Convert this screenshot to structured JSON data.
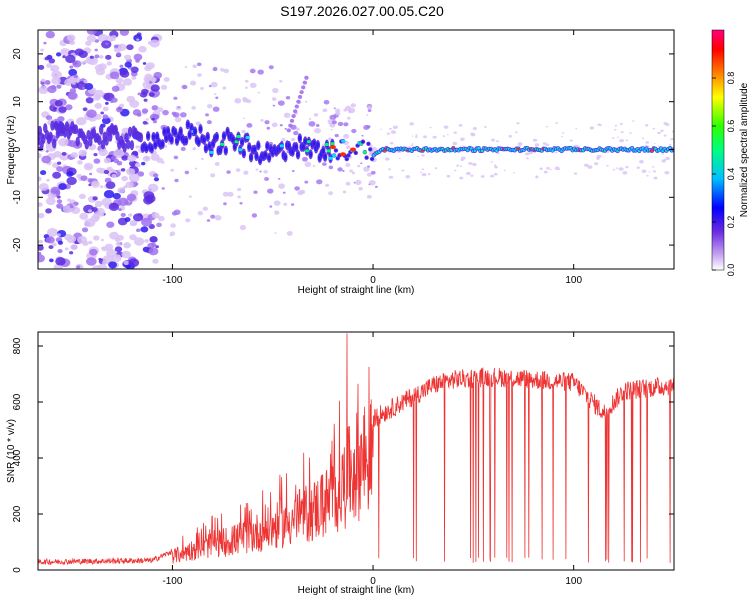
{
  "figure": {
    "title": "S197.2026.027.00.05.C20"
  },
  "chart_data": [
    {
      "type": "heatmap",
      "xlabel": "Height of straight line (km)",
      "ylabel": "Frequency (Hz)",
      "xlim": [
        -167,
        150
      ],
      "ylim": [
        -25,
        25
      ],
      "x_ticks": [
        -100,
        0,
        100
      ],
      "y_ticks": [
        -20,
        -10,
        0,
        10,
        20
      ],
      "colorbar": {
        "label": "Normalized spectral amplitude",
        "range": [
          0,
          1
        ],
        "ticks": [
          0.0,
          0.2,
          0.4,
          0.6,
          0.8
        ],
        "colors": [
          "#ffffff",
          "#8a2be2",
          "#0000ff",
          "#00bfff",
          "#00ffaa",
          "#00ff00",
          "#ffff00",
          "#ff8000",
          "#ff0000",
          "#ff0080"
        ]
      },
      "colors": {
        "faint": "#d9c2f5",
        "low": "#a070f0",
        "mid": "#5a2ce0",
        "strong": "#2b1bf0",
        "cyan": "#00e5ff",
        "green": "#00ff66",
        "red": "#ff2a00"
      },
      "ridge": {
        "x": [
          -167,
          -140,
          -120,
          -100,
          -90,
          -80,
          -70,
          -60,
          -50,
          -40,
          -30,
          -20,
          -15,
          -10,
          -5,
          0,
          5,
          20,
          50,
          80,
          100,
          120,
          150
        ],
        "frequency": [
          3,
          3,
          2,
          2,
          4,
          1,
          2,
          0,
          -1,
          1,
          0,
          0,
          0,
          -1,
          0,
          -1,
          0,
          0,
          0,
          0,
          0,
          0,
          0
        ]
      },
      "grid": false
    },
    {
      "type": "line",
      "xlabel": "Height of straight line (km)",
      "ylabel": "SNR (10 * v/v)",
      "xlim": [
        -167,
        150
      ],
      "ylim": [
        0,
        850
      ],
      "x_ticks": [
        -100,
        0,
        100
      ],
      "y_ticks": [
        0,
        200,
        400,
        600,
        800
      ],
      "line_color": "#ee3333",
      "profile": {
        "x": [
          -167,
          -110,
          -95,
          -85,
          -70,
          -60,
          -50,
          -40,
          -30,
          -20,
          -15,
          -10,
          0,
          10,
          20,
          30,
          40,
          60,
          80,
          100,
          115,
          125,
          150
        ],
        "base": [
          25,
          30,
          80,
          110,
          140,
          170,
          200,
          240,
          280,
          340,
          400,
          480,
          540,
          580,
          620,
          660,
          680,
          690,
          680,
          670,
          560,
          640,
          660
        ]
      },
      "peak": {
        "x": -13,
        "y": 845
      },
      "grid": false
    }
  ]
}
